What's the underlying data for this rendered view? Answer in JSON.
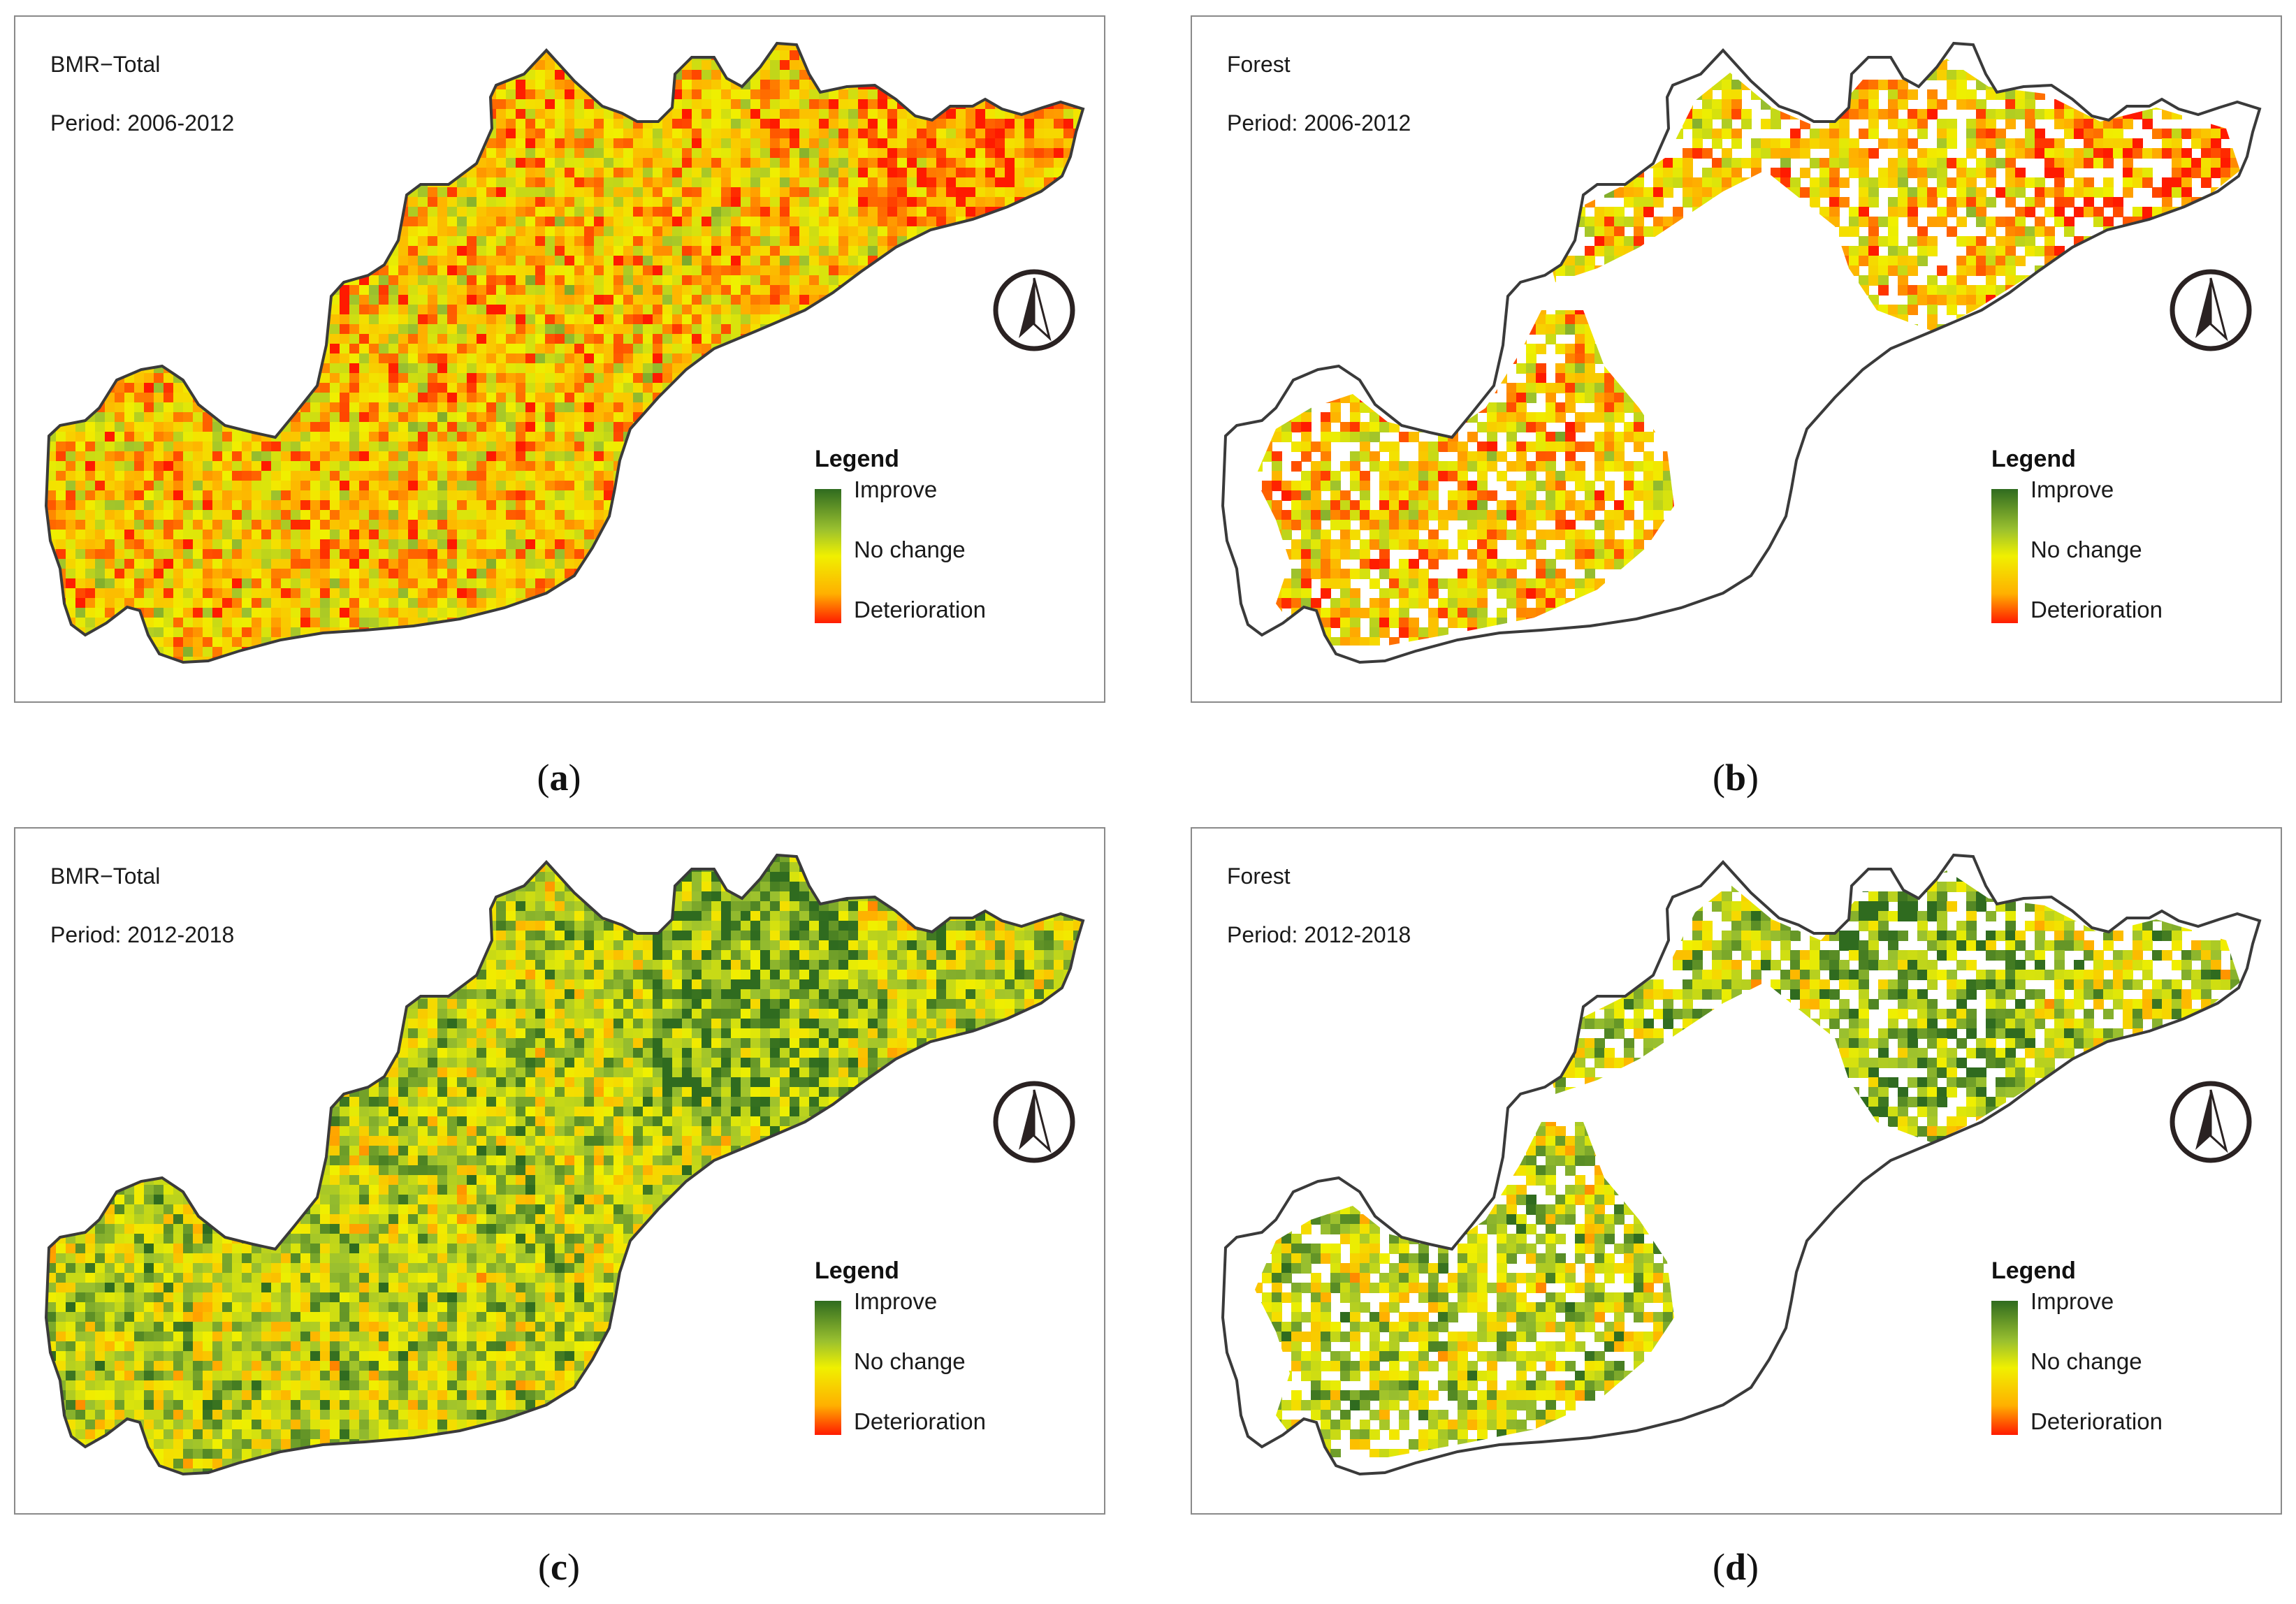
{
  "panels": [
    {
      "id": "a",
      "title": "BMR−Total",
      "period": "Period: 2006-2012",
      "caption_letter": "a",
      "caption_open": "(",
      "caption_close": ")",
      "kind": "total",
      "trend": "deteriorate"
    },
    {
      "id": "b",
      "title": "Forest",
      "period": "Period: 2006-2012",
      "caption_letter": "b",
      "caption_open": "(",
      "caption_close": ")",
      "kind": "forest",
      "trend": "deteriorate"
    },
    {
      "id": "c",
      "title": "BMR−Total",
      "period": "Period: 2012-2018",
      "caption_letter": "c",
      "caption_open": "(",
      "caption_close": ")",
      "kind": "total",
      "trend": "improve"
    },
    {
      "id": "d",
      "title": "Forest",
      "period": "Period: 2012-2018",
      "caption_letter": "d",
      "caption_open": "(",
      "caption_close": ")",
      "kind": "forest",
      "trend": "improve"
    }
  ],
  "legend": {
    "title": "Legend",
    "labels": [
      "Improve",
      "No change",
      "Deterioration"
    ],
    "colors": {
      "improve": "#2f6b1f",
      "no_change": "#f0f000",
      "deterioration": "#ff1a00"
    }
  },
  "icons": {
    "north_arrow": "north-arrow-icon"
  }
}
